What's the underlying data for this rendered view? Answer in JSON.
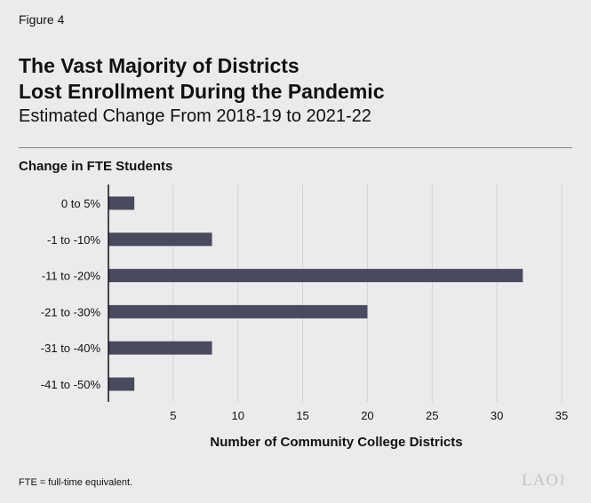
{
  "figure_label": "Figure 4",
  "title_line1": "The Vast Majority of Districts",
  "title_line2": "Lost Enrollment During the Pandemic",
  "subtitle": "Estimated Change From 2018-19 to 2021-22",
  "footnote": "FTE = full-time equivalent.",
  "logo_text": "LAO",
  "colors": {
    "bar": "#4a4a5e",
    "background": "#ebebed",
    "grid": "#d2d2d4"
  },
  "chart_data": {
    "type": "bar",
    "orientation": "horizontal",
    "categories": [
      "0 to 5%",
      "-1 to -10%",
      "-11 to -20%",
      "-21 to -30%",
      "-31 to -40%",
      "-41 to -50%"
    ],
    "values": [
      2,
      8,
      32,
      20,
      8,
      2
    ],
    "ylabel": "Change in FTE Students",
    "xlabel": "Number of Community College Districts",
    "xlim": [
      0,
      35
    ],
    "xticks": [
      5,
      10,
      15,
      20,
      25,
      30,
      35
    ],
    "grid": true
  }
}
